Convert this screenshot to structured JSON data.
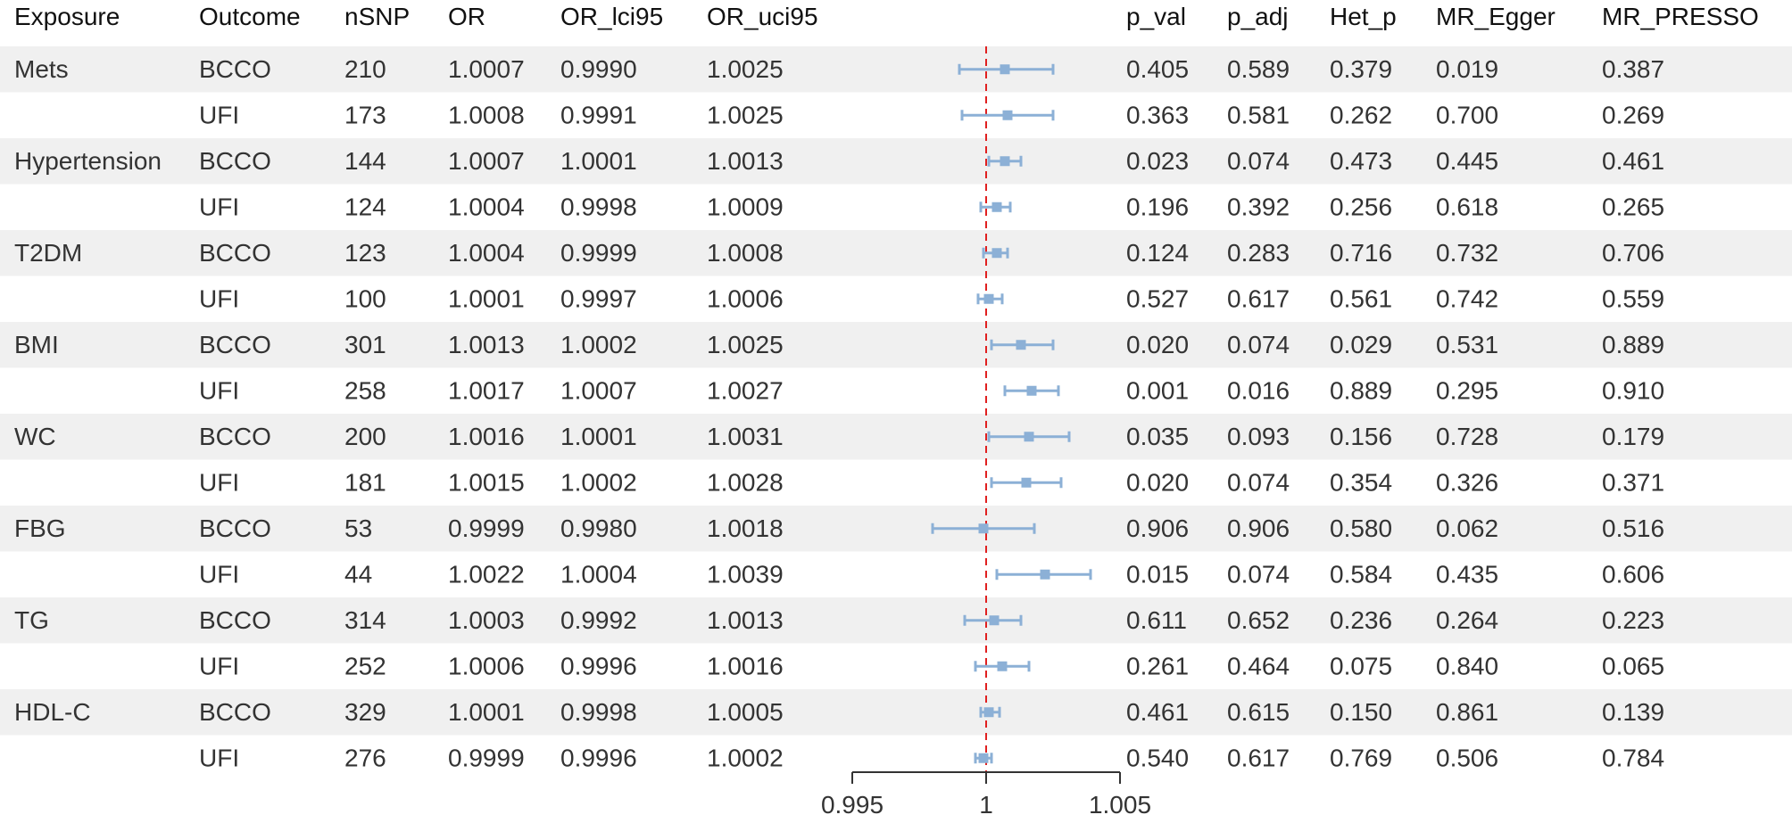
{
  "columns": {
    "exposure": "Exposure",
    "outcome": "Outcome",
    "nsnp": "nSNP",
    "or": "OR",
    "or_lci95": "OR_lci95",
    "or_uci95": "OR_uci95",
    "p_val": "p_val",
    "p_adj": "p_adj",
    "het_p": "Het_p",
    "mr_egger": "MR_Egger",
    "mr_presso": "MR_PRESSO"
  },
  "colors": {
    "stripe": "#f0f0f0",
    "ci": "#8cb0d6",
    "reference_line": "#e02020",
    "axis": "#333333"
  },
  "chart_data": {
    "type": "table",
    "subtype": "forest-plot",
    "reference_value": 1,
    "axis_range": [
      0.995,
      1.005
    ],
    "axis_ticks": [
      "0.995",
      "1",
      "1.005"
    ],
    "rows": [
      {
        "exposure": "Mets",
        "outcome": "BCCO",
        "nsnp": "210",
        "or": "1.0007",
        "lci": "0.9990",
        "uci": "1.0025",
        "p_val": "0.405",
        "p_adj": "0.589",
        "het_p": "0.379",
        "mr_egger": "0.019",
        "mr_presso": "0.387"
      },
      {
        "exposure": "",
        "outcome": "UFI",
        "nsnp": "173",
        "or": "1.0008",
        "lci": "0.9991",
        "uci": "1.0025",
        "p_val": "0.363",
        "p_adj": "0.581",
        "het_p": "0.262",
        "mr_egger": "0.700",
        "mr_presso": "0.269"
      },
      {
        "exposure": "Hypertension",
        "outcome": "BCCO",
        "nsnp": "144",
        "or": "1.0007",
        "lci": "1.0001",
        "uci": "1.0013",
        "p_val": "0.023",
        "p_adj": "0.074",
        "het_p": "0.473",
        "mr_egger": "0.445",
        "mr_presso": "0.461"
      },
      {
        "exposure": "",
        "outcome": "UFI",
        "nsnp": "124",
        "or": "1.0004",
        "lci": "0.9998",
        "uci": "1.0009",
        "p_val": "0.196",
        "p_adj": "0.392",
        "het_p": "0.256",
        "mr_egger": "0.618",
        "mr_presso": "0.265"
      },
      {
        "exposure": "T2DM",
        "outcome": "BCCO",
        "nsnp": "123",
        "or": "1.0004",
        "lci": "0.9999",
        "uci": "1.0008",
        "p_val": "0.124",
        "p_adj": "0.283",
        "het_p": "0.716",
        "mr_egger": "0.732",
        "mr_presso": "0.706"
      },
      {
        "exposure": "",
        "outcome": "UFI",
        "nsnp": "100",
        "or": "1.0001",
        "lci": "0.9997",
        "uci": "1.0006",
        "p_val": "0.527",
        "p_adj": "0.617",
        "het_p": "0.561",
        "mr_egger": "0.742",
        "mr_presso": "0.559"
      },
      {
        "exposure": "BMI",
        "outcome": "BCCO",
        "nsnp": "301",
        "or": "1.0013",
        "lci": "1.0002",
        "uci": "1.0025",
        "p_val": "0.020",
        "p_adj": "0.074",
        "het_p": "0.029",
        "mr_egger": "0.531",
        "mr_presso": "0.889"
      },
      {
        "exposure": "",
        "outcome": "UFI",
        "nsnp": "258",
        "or": "1.0017",
        "lci": "1.0007",
        "uci": "1.0027",
        "p_val": "0.001",
        "p_adj": "0.016",
        "het_p": "0.889",
        "mr_egger": "0.295",
        "mr_presso": "0.910"
      },
      {
        "exposure": "WC",
        "outcome": "BCCO",
        "nsnp": "200",
        "or": "1.0016",
        "lci": "1.0001",
        "uci": "1.0031",
        "p_val": "0.035",
        "p_adj": "0.093",
        "het_p": "0.156",
        "mr_egger": "0.728",
        "mr_presso": "0.179"
      },
      {
        "exposure": "",
        "outcome": "UFI",
        "nsnp": "181",
        "or": "1.0015",
        "lci": "1.0002",
        "uci": "1.0028",
        "p_val": "0.020",
        "p_adj": "0.074",
        "het_p": "0.354",
        "mr_egger": "0.326",
        "mr_presso": "0.371"
      },
      {
        "exposure": "FBG",
        "outcome": "BCCO",
        "nsnp": "53",
        "or": "0.9999",
        "lci": "0.9980",
        "uci": "1.0018",
        "p_val": "0.906",
        "p_adj": "0.906",
        "het_p": "0.580",
        "mr_egger": "0.062",
        "mr_presso": "0.516"
      },
      {
        "exposure": "",
        "outcome": "UFI",
        "nsnp": "44",
        "or": "1.0022",
        "lci": "1.0004",
        "uci": "1.0039",
        "p_val": "0.015",
        "p_adj": "0.074",
        "het_p": "0.584",
        "mr_egger": "0.435",
        "mr_presso": "0.606"
      },
      {
        "exposure": "TG",
        "outcome": "BCCO",
        "nsnp": "314",
        "or": "1.0003",
        "lci": "0.9992",
        "uci": "1.0013",
        "p_val": "0.611",
        "p_adj": "0.652",
        "het_p": "0.236",
        "mr_egger": "0.264",
        "mr_presso": "0.223"
      },
      {
        "exposure": "",
        "outcome": "UFI",
        "nsnp": "252",
        "or": "1.0006",
        "lci": "0.9996",
        "uci": "1.0016",
        "p_val": "0.261",
        "p_adj": "0.464",
        "het_p": "0.075",
        "mr_egger": "0.840",
        "mr_presso": "0.065"
      },
      {
        "exposure": "HDL-C",
        "outcome": "BCCO",
        "nsnp": "329",
        "or": "1.0001",
        "lci": "0.9998",
        "uci": "1.0005",
        "p_val": "0.461",
        "p_adj": "0.615",
        "het_p": "0.150",
        "mr_egger": "0.861",
        "mr_presso": "0.139"
      },
      {
        "exposure": "",
        "outcome": "UFI",
        "nsnp": "276",
        "or": "0.9999",
        "lci": "0.9996",
        "uci": "1.0002",
        "p_val": "0.540",
        "p_adj": "0.617",
        "het_p": "0.769",
        "mr_egger": "0.506",
        "mr_presso": "0.784"
      }
    ]
  }
}
